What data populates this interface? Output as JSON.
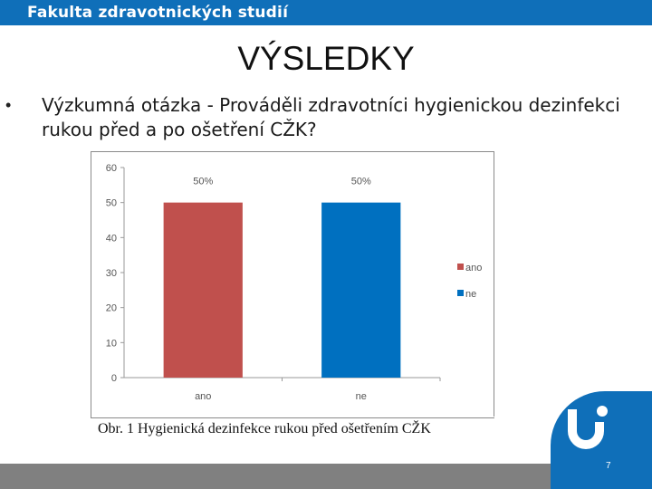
{
  "header": {
    "faculty": "Fakulta zdravotnických studií"
  },
  "slide": {
    "title": "VÝSLEDKY",
    "bullet_symbol": "•",
    "question": "Výzkumná otázka - Prováděli zdravotníci hygienickou dezinfekci rukou před a po ošetření CŽK?",
    "caption": "Obr. 1 Hygienická dezinfekce rukou před ošetřením CŽK",
    "page_number": "7"
  },
  "colors": {
    "brand_blue": "#0f6fb9",
    "bar_ano": "#c0504d",
    "bar_ne": "#0070c0",
    "footer_gray": "#808080"
  },
  "icons": {
    "logo": "university-u-logo"
  },
  "chart_data": {
    "type": "bar",
    "categories": [
      "ano",
      "ne"
    ],
    "values": [
      50,
      50
    ],
    "data_labels": [
      "50%",
      "50%"
    ],
    "legend": [
      "ano",
      "ne"
    ],
    "legend_position": "right",
    "colors": [
      "#c0504d",
      "#0070c0"
    ],
    "ylim": [
      0,
      60
    ],
    "yticks": [
      0,
      10,
      20,
      30,
      40,
      50,
      60
    ],
    "grid": false
  }
}
